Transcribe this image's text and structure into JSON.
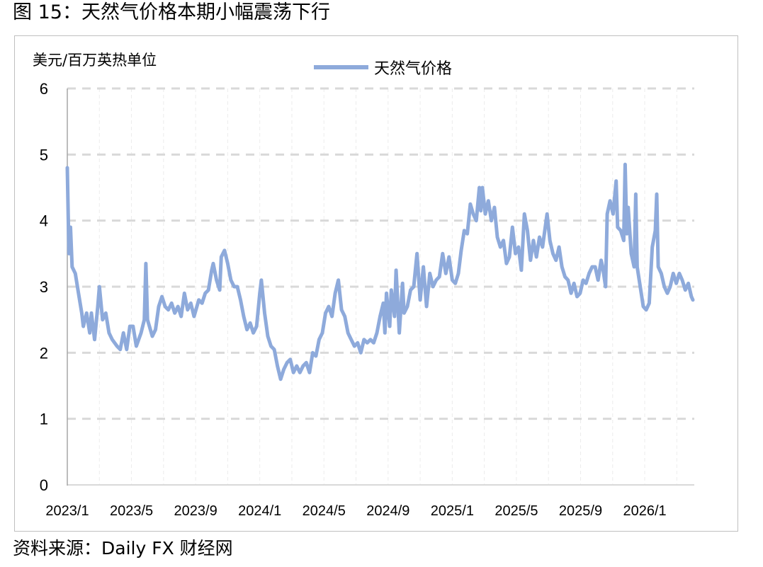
{
  "title": "图 15：天然气价格本期小幅震荡下行",
  "source": "资料来源：Daily FX 财经网",
  "chart_data": {
    "type": "line",
    "title": "天然气价格本期小幅震荡下行",
    "ylabel": "美元/百万英热单位",
    "xlabel": "",
    "ylim": [
      0,
      6
    ],
    "yticks": [
      "0",
      "1",
      "2",
      "3",
      "4",
      "5",
      "6"
    ],
    "x_unit": "months since 2023/1",
    "xlim": [
      0,
      39
    ],
    "xtick_labels": [
      "2023/1",
      "2023/5",
      "2023/9",
      "2024/1",
      "2024/5",
      "2024/9",
      "2025/1",
      "2025/5",
      "2025/9",
      "2026/1"
    ],
    "xtick_months": [
      0,
      4,
      8,
      12,
      16,
      20,
      24,
      28,
      32,
      36
    ],
    "grid": "horizontal dashed, faint vertical",
    "legend_position": "top-center",
    "color": "#8eaadb",
    "series": [
      {
        "name": "天然气价格",
        "points": [
          [
            0,
            4.8
          ],
          [
            0.1,
            3.5
          ],
          [
            0.2,
            3.9
          ],
          [
            0.3,
            3.3
          ],
          [
            0.5,
            3.2
          ],
          [
            0.7,
            2.9
          ],
          [
            0.9,
            2.6
          ],
          [
            1.0,
            2.4
          ],
          [
            1.2,
            2.6
          ],
          [
            1.4,
            2.3
          ],
          [
            1.5,
            2.6
          ],
          [
            1.7,
            2.2
          ],
          [
            1.9,
            2.7
          ],
          [
            2.0,
            3.0
          ],
          [
            2.2,
            2.5
          ],
          [
            2.4,
            2.6
          ],
          [
            2.6,
            2.3
          ],
          [
            2.8,
            2.2
          ],
          [
            3.1,
            2.1
          ],
          [
            3.3,
            2.05
          ],
          [
            3.5,
            2.3
          ],
          [
            3.7,
            2.05
          ],
          [
            3.9,
            2.4
          ],
          [
            4.1,
            2.4
          ],
          [
            4.3,
            2.1
          ],
          [
            4.6,
            2.3
          ],
          [
            4.8,
            2.5
          ],
          [
            4.9,
            3.35
          ],
          [
            5.0,
            2.5
          ],
          [
            5.3,
            2.25
          ],
          [
            5.5,
            2.35
          ],
          [
            5.7,
            2.7
          ],
          [
            5.9,
            2.85
          ],
          [
            6.1,
            2.7
          ],
          [
            6.3,
            2.65
          ],
          [
            6.5,
            2.75
          ],
          [
            6.7,
            2.6
          ],
          [
            6.9,
            2.7
          ],
          [
            7.1,
            2.55
          ],
          [
            7.3,
            2.9
          ],
          [
            7.5,
            2.65
          ],
          [
            7.7,
            2.75
          ],
          [
            7.9,
            2.55
          ],
          [
            8.2,
            2.8
          ],
          [
            8.4,
            2.75
          ],
          [
            8.6,
            2.9
          ],
          [
            8.8,
            2.95
          ],
          [
            9.0,
            3.25
          ],
          [
            9.1,
            3.35
          ],
          [
            9.3,
            3.1
          ],
          [
            9.5,
            2.95
          ],
          [
            9.6,
            3.45
          ],
          [
            9.8,
            3.55
          ],
          [
            10.0,
            3.35
          ],
          [
            10.2,
            3.1
          ],
          [
            10.4,
            3.0
          ],
          [
            10.6,
            3.0
          ],
          [
            10.8,
            2.8
          ],
          [
            11.0,
            2.55
          ],
          [
            11.2,
            2.35
          ],
          [
            11.4,
            2.45
          ],
          [
            11.6,
            2.3
          ],
          [
            11.8,
            2.4
          ],
          [
            12.0,
            2.9
          ],
          [
            12.1,
            3.1
          ],
          [
            12.3,
            2.6
          ],
          [
            12.5,
            2.25
          ],
          [
            12.7,
            2.1
          ],
          [
            12.9,
            2.05
          ],
          [
            13.1,
            1.8
          ],
          [
            13.3,
            1.6
          ],
          [
            13.5,
            1.75
          ],
          [
            13.7,
            1.85
          ],
          [
            13.9,
            1.9
          ],
          [
            14.1,
            1.7
          ],
          [
            14.3,
            1.8
          ],
          [
            14.5,
            1.7
          ],
          [
            14.7,
            1.8
          ],
          [
            14.9,
            1.85
          ],
          [
            15.1,
            1.7
          ],
          [
            15.3,
            2.0
          ],
          [
            15.5,
            1.95
          ],
          [
            15.7,
            2.2
          ],
          [
            15.9,
            2.3
          ],
          [
            16.1,
            2.6
          ],
          [
            16.3,
            2.7
          ],
          [
            16.5,
            2.55
          ],
          [
            16.7,
            2.9
          ],
          [
            16.9,
            3.1
          ],
          [
            17.1,
            2.65
          ],
          [
            17.3,
            2.55
          ],
          [
            17.5,
            2.3
          ],
          [
            17.7,
            2.2
          ],
          [
            17.9,
            2.1
          ],
          [
            18.1,
            2.15
          ],
          [
            18.3,
            2.0
          ],
          [
            18.5,
            2.2
          ],
          [
            18.7,
            2.15
          ],
          [
            18.9,
            2.2
          ],
          [
            19.1,
            2.15
          ],
          [
            19.3,
            2.3
          ],
          [
            19.5,
            2.55
          ],
          [
            19.7,
            2.75
          ],
          [
            19.8,
            2.3
          ],
          [
            19.9,
            2.9
          ],
          [
            20.1,
            2.4
          ],
          [
            20.2,
            2.95
          ],
          [
            20.4,
            2.55
          ],
          [
            20.5,
            3.25
          ],
          [
            20.7,
            2.3
          ],
          [
            20.9,
            3.05
          ],
          [
            21.0,
            2.6
          ],
          [
            21.2,
            2.7
          ],
          [
            21.4,
            2.95
          ],
          [
            21.6,
            3.0
          ],
          [
            21.8,
            3.5
          ],
          [
            22.0,
            2.8
          ],
          [
            22.2,
            3.3
          ],
          [
            22.4,
            2.7
          ],
          [
            22.6,
            3.2
          ],
          [
            22.8,
            3.0
          ],
          [
            23.0,
            3.1
          ],
          [
            23.2,
            3.15
          ],
          [
            23.4,
            3.5
          ],
          [
            23.6,
            3.2
          ],
          [
            23.8,
            3.45
          ],
          [
            24.0,
            3.1
          ],
          [
            24.19,
            3.05
          ],
          [
            24.38,
            3.2
          ],
          [
            24.56,
            3.55
          ],
          [
            24.75,
            3.85
          ],
          [
            24.94,
            3.8
          ],
          [
            25.13,
            4.25
          ],
          [
            25.31,
            4.1
          ],
          [
            25.5,
            4.0
          ],
          [
            25.69,
            4.5
          ],
          [
            25.78,
            4.15
          ],
          [
            25.88,
            4.5
          ],
          [
            26.06,
            4.1
          ],
          [
            26.25,
            4.3
          ],
          [
            26.44,
            4.0
          ],
          [
            26.63,
            4.2
          ],
          [
            26.81,
            3.75
          ],
          [
            27.0,
            3.6
          ],
          [
            27.19,
            3.7
          ],
          [
            27.38,
            3.35
          ],
          [
            27.56,
            3.45
          ],
          [
            27.75,
            3.9
          ],
          [
            27.94,
            3.5
          ],
          [
            28.13,
            3.6
          ],
          [
            28.31,
            3.25
          ],
          [
            28.5,
            4.1
          ],
          [
            28.69,
            3.85
          ],
          [
            28.88,
            3.4
          ],
          [
            29.06,
            3.7
          ],
          [
            29.25,
            3.45
          ],
          [
            29.44,
            3.75
          ],
          [
            29.63,
            3.6
          ],
          [
            29.91,
            4.1
          ],
          [
            30.09,
            3.7
          ],
          [
            30.28,
            3.5
          ],
          [
            30.47,
            3.4
          ],
          [
            30.66,
            3.6
          ],
          [
            30.84,
            3.3
          ],
          [
            31.03,
            3.15
          ],
          [
            31.22,
            3.1
          ],
          [
            31.41,
            2.9
          ],
          [
            31.59,
            3.05
          ],
          [
            31.78,
            2.85
          ],
          [
            31.97,
            2.9
          ],
          [
            32.16,
            3.1
          ],
          [
            32.34,
            3.05
          ],
          [
            32.53,
            3.2
          ],
          [
            32.72,
            3.3
          ],
          [
            32.91,
            3.3
          ],
          [
            33.09,
            3.1
          ],
          [
            33.28,
            3.4
          ],
          [
            33.38,
            3.3
          ],
          [
            33.56,
            3.0
          ],
          [
            33.66,
            4.1
          ],
          [
            33.84,
            4.3
          ],
          [
            34.03,
            4.1
          ],
          [
            34.22,
            4.6
          ],
          [
            34.31,
            3.9
          ],
          [
            34.5,
            3.85
          ],
          [
            34.69,
            3.7
          ],
          [
            34.78,
            4.85
          ],
          [
            34.88,
            3.8
          ],
          [
            34.97,
            4.2
          ],
          [
            35.16,
            3.5
          ],
          [
            35.34,
            3.3
          ],
          [
            35.44,
            4.4
          ],
          [
            35.53,
            3.3
          ],
          [
            35.72,
            3.0
          ],
          [
            35.91,
            2.7
          ],
          [
            36.09,
            2.65
          ],
          [
            36.28,
            2.75
          ],
          [
            36.47,
            3.6
          ],
          [
            36.66,
            3.85
          ],
          [
            36.75,
            4.4
          ],
          [
            36.84,
            3.3
          ],
          [
            37.03,
            3.2
          ],
          [
            37.22,
            3.0
          ],
          [
            37.41,
            2.9
          ],
          [
            37.59,
            3.0
          ],
          [
            37.78,
            3.2
          ],
          [
            37.97,
            3.05
          ],
          [
            38.16,
            3.2
          ],
          [
            38.34,
            3.1
          ],
          [
            38.53,
            2.95
          ],
          [
            38.72,
            3.05
          ],
          [
            38.91,
            2.85
          ],
          [
            39.0,
            2.8
          ]
        ]
      }
    ]
  }
}
